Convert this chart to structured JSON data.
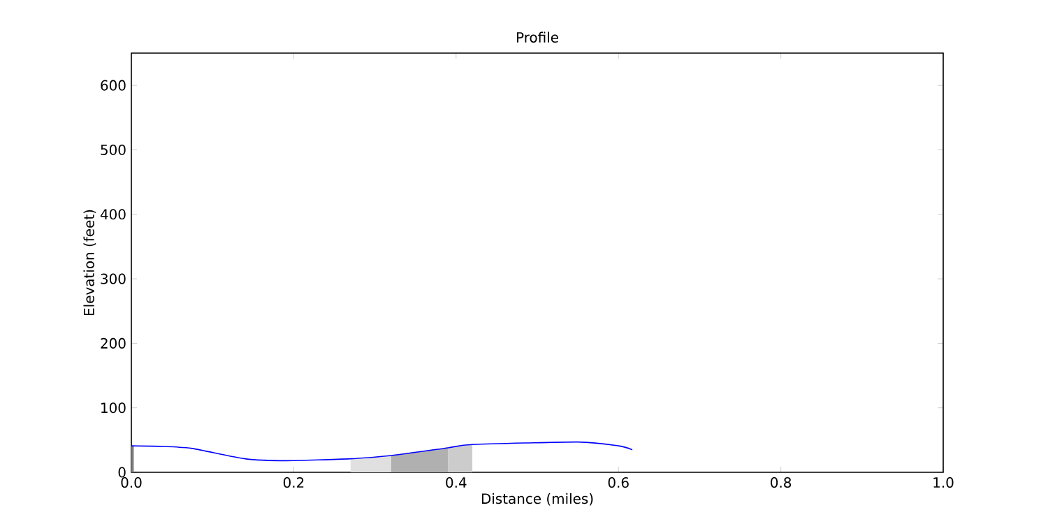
{
  "chart_data": {
    "type": "line",
    "title": "Profile",
    "xlabel": "Distance (miles)",
    "ylabel": "Elevation (feet)",
    "xlim": [
      0,
      1
    ],
    "ylim": [
      0,
      650
    ],
    "xticks": [
      {
        "value": 0,
        "label": "0.0"
      },
      0.2,
      0.4,
      0.6,
      0.8,
      {
        "value": 1,
        "label": "1.0"
      }
    ],
    "yticks": [
      0,
      100,
      200,
      300,
      400,
      500,
      600
    ],
    "grid": false,
    "series": [
      {
        "type": "area",
        "color": "#808080",
        "x": [
          0,
          0.003
        ],
        "values": [
          41,
          41
        ]
      },
      {
        "type": "area",
        "color": "#e0e0e0",
        "x": [
          0.27,
          0.32
        ],
        "values": [
          21,
          26
        ]
      },
      {
        "type": "area",
        "color": "#b0b0b0",
        "x": [
          0.32,
          0.39
        ],
        "values": [
          26,
          38
        ]
      },
      {
        "type": "area",
        "color": "#cccccc",
        "x": [
          0.39,
          0.42
        ],
        "values": [
          38,
          43
        ]
      },
      {
        "color": "#0000ff",
        "x": [
          0,
          0.04,
          0.075,
          0.14,
          0.19,
          0.27,
          0.32,
          0.39,
          0.42,
          0.55,
          0.6,
          0.617
        ],
        "values": [
          41,
          40,
          37,
          21,
          18,
          21,
          26,
          38,
          43,
          47,
          41,
          35
        ]
      }
    ]
  }
}
